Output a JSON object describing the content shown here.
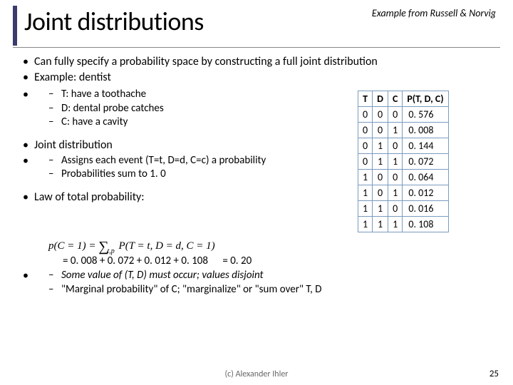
{
  "attribution": "Example from Russell & Norvig",
  "title": "Joint distributions",
  "bullets": {
    "b1": "Can fully specify a probability space by constructing a full joint distribution",
    "b2": "Example: dentist",
    "b2a": "T: have a toothache",
    "b2b": "D: dental probe catches",
    "b2c": "C: have a cavity",
    "b3": "Joint distribution",
    "b3a": "Assigns each event (T=t, D=d, C=c) a probability",
    "b3b": "Probabilities sum to 1. 0",
    "b4": "Law of total probability:",
    "calc_lhs": "=  0. 008 + 0. 072 + 0. 012 + 0. 108",
    "calc_rhs": "= 0. 20",
    "b4a": "Some value of (T, D) must occur; values disjoint",
    "b4b": "\"Marginal probability\" of C;  \"marginalize\" or \"sum over\" T, D"
  },
  "formula": {
    "lhs": "p(C = 1) = ",
    "sum_sub": "t,p",
    "rhs": " P(T = t, D = d, C = 1)"
  },
  "table": {
    "headers": [
      "T",
      "D",
      "C",
      "P(T, D, C)"
    ],
    "rows": [
      [
        "0",
        "0",
        "0",
        "0. 576"
      ],
      [
        "0",
        "0",
        "1",
        "0. 008"
      ],
      [
        "0",
        "1",
        "0",
        "0. 144"
      ],
      [
        "0",
        "1",
        "1",
        "0. 072"
      ],
      [
        "1",
        "0",
        "0",
        "0. 064"
      ],
      [
        "1",
        "0",
        "1",
        "0. 012"
      ],
      [
        "1",
        "1",
        "0",
        "0. 016"
      ],
      [
        "1",
        "1",
        "1",
        "0. 108"
      ]
    ],
    "border_color": "#7a9bbf"
  },
  "footer": "(c) Alexander Ihler",
  "page_number": "25",
  "colors": {
    "title_bar": "#3b3b6d"
  }
}
